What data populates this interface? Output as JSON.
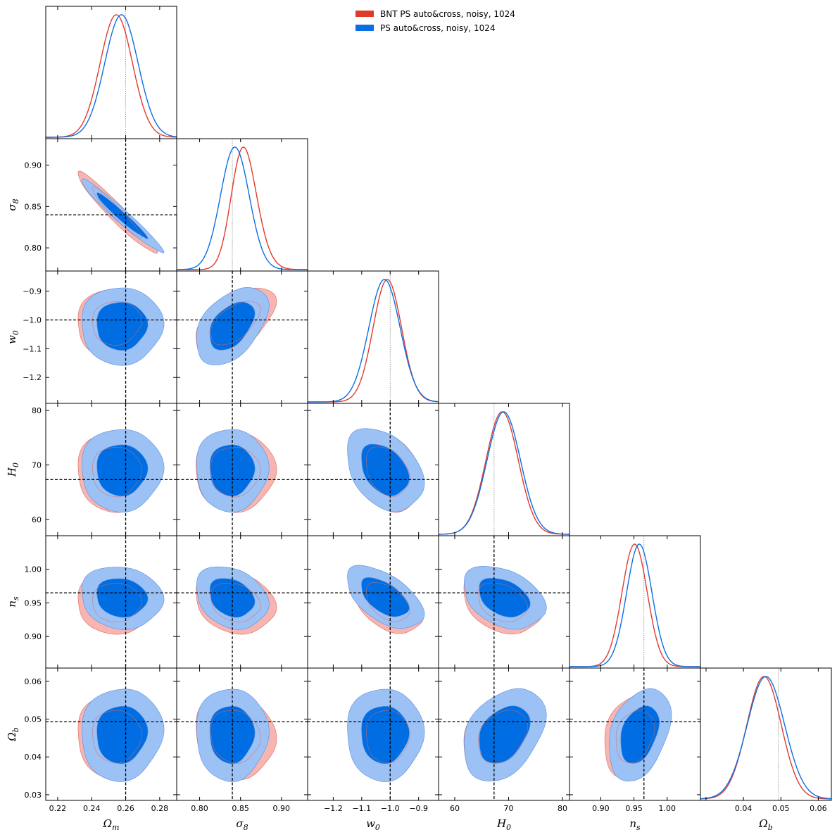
{
  "chart_data": {
    "type": "corner-triangle-plot",
    "colors": {
      "bnt": "#e03a2c",
      "bnt_fill": "#f4a8a2",
      "ps": "#0a6fe3",
      "ps_fill": "#9cc1f4",
      "ps_fill_inner": "#006de2",
      "truth_line": "#000000"
    },
    "legend": [
      {
        "name": "BNT PS auto&cross, noisy, 1024",
        "color": "#e03a2c"
      },
      {
        "name": "PS auto&cross, noisy, 1024",
        "color": "#0a6fe3"
      }
    ],
    "parameters": [
      {
        "key": "om",
        "label": "Ωm",
        "base": "Ω",
        "sub": "m",
        "range": [
          0.213,
          0.29
        ],
        "ticks": [
          0.22,
          0.24,
          0.26,
          0.28
        ],
        "tick_labels": [
          "0.22",
          "0.24",
          "0.26",
          "0.28"
        ],
        "truth": 0.26,
        "bnt": {
          "mean": 0.2545,
          "sigma": 0.0095,
          "skew": 0.0
        },
        "ps": {
          "mean": 0.2575,
          "sigma": 0.0098,
          "skew": 0.0
        }
      },
      {
        "key": "s8",
        "label": "σ8",
        "base": "σ",
        "sub": "8",
        "range": [
          0.772,
          0.932
        ],
        "ticks": [
          0.8,
          0.85,
          0.9
        ],
        "tick_labels": [
          "0.80",
          "0.85",
          "0.90"
        ],
        "truth": 0.84,
        "bnt": {
          "mean": 0.843,
          "sigma": 0.02,
          "skew": 1.2
        },
        "ps": {
          "mean": 0.839,
          "sigma": 0.018,
          "skew": 0.3
        }
      },
      {
        "key": "w0",
        "label": "w0",
        "base": "w",
        "sub": "0",
        "range": [
          -1.29,
          -0.83
        ],
        "ticks": [
          -1.2,
          -1.1,
          -1.0,
          -0.9
        ],
        "tick_labels": [
          "−1.2",
          "−1.1",
          "−1.0",
          "−0.9"
        ],
        "truth": -1.0,
        "bnt": {
          "mean": -1.01,
          "sigma": 0.05,
          "skew": 0.0
        },
        "ps": {
          "mean": -1.02,
          "sigma": 0.055,
          "skew": 0.0
        }
      },
      {
        "key": "h0",
        "label": "H0",
        "base": "H",
        "sub": "0",
        "range": [
          57.0,
          81.3
        ],
        "ticks": [
          60,
          70,
          80
        ],
        "tick_labels": [
          "60",
          "70",
          "80"
        ],
        "truth": 67.3,
        "bnt": {
          "mean": 68.8,
          "sigma": 3.0,
          "skew": 0.0
        },
        "ps": {
          "mean": 69.1,
          "sigma": 3.1,
          "skew": 0.0
        }
      },
      {
        "key": "ns",
        "label": "ns",
        "base": "n",
        "sub": "s",
        "range": [
          0.853,
          1.05
        ],
        "ticks": [
          0.9,
          0.95,
          1.0
        ],
        "tick_labels": [
          "0.90",
          "0.95",
          "1.00"
        ],
        "truth": 0.965,
        "bnt": {
          "mean": 0.951,
          "sigma": 0.019,
          "skew": 0.0
        },
        "ps": {
          "mean": 0.958,
          "sigma": 0.019,
          "skew": 0.0
        }
      },
      {
        "key": "ob",
        "label": "Ωb",
        "base": "Ω",
        "sub": "b",
        "range": [
          0.0285,
          0.0635
        ],
        "ticks": [
          0.03,
          0.04,
          0.05,
          0.06
        ],
        "tick_labels": [
          "0.03",
          "0.04",
          "0.05",
          "0.06"
        ],
        "truth": 0.0493,
        "bnt": {
          "mean": 0.0455,
          "sigma": 0.0046,
          "skew": 0.0
        },
        "ps": {
          "mean": 0.046,
          "sigma": 0.005,
          "skew": 0.0
        }
      }
    ],
    "bottom_tick_labels": {
      "ob": [
        "0.04",
        "0.05",
        "0.06"
      ]
    },
    "correlations": {
      "bnt": {
        "om-s8": -0.96,
        "om-w0": 0.05,
        "s8-w0": 0.55,
        "om-h0": 0.0,
        "s8-h0": 0.0,
        "w0-h0": -0.3,
        "om-ns": 0.0,
        "s8-ns": -0.2,
        "w0-ns": -0.45,
        "h0-ns": -0.3,
        "om-ob": 0.0,
        "s8-ob": -0.1,
        "w0-ob": 0.0,
        "h0-ob": 0.3,
        "ns-ob": 0.25
      },
      "ps": {
        "om-s8": -0.97,
        "om-w0": 0.0,
        "s8-w0": 0.45,
        "om-h0": 0.0,
        "s8-h0": 0.0,
        "w0-h0": -0.35,
        "om-ns": -0.1,
        "s8-ns": -0.25,
        "w0-ns": -0.55,
        "h0-ns": -0.35,
        "om-ob": 0.05,
        "s8-ob": 0.0,
        "w0-ob": 0.0,
        "h0-ob": 0.35,
        "ns-ob": 0.35
      }
    }
  }
}
